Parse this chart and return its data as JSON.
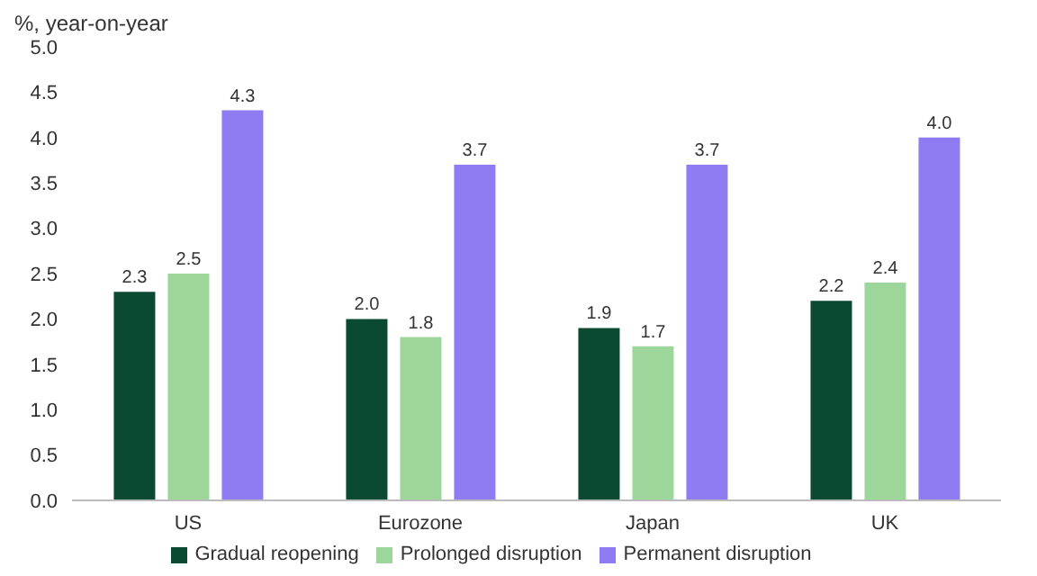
{
  "chart_data": {
    "type": "bar",
    "ylabel": "%, year-on-year",
    "categories": [
      "US",
      "Eurozone",
      "Japan",
      "UK"
    ],
    "series": [
      {
        "name": "Gradual reopening",
        "color": "#0b4a32",
        "values": [
          2.3,
          2.0,
          1.9,
          2.2
        ],
        "value_labels": [
          "2.3",
          "2.0",
          "1.9",
          "2.2"
        ]
      },
      {
        "name": "Prolonged disruption",
        "color": "#9dd69b",
        "values": [
          2.5,
          1.8,
          1.7,
          2.4
        ],
        "value_labels": [
          "2.5",
          "1.8",
          "1.7",
          "2.4"
        ]
      },
      {
        "name": "Permanent disruption",
        "color": "#8f7cf2",
        "values": [
          4.3,
          3.7,
          3.7,
          4.0
        ],
        "value_labels": [
          "4.3",
          "3.7",
          "3.7",
          "4.0"
        ]
      }
    ],
    "ylim": [
      0,
      5
    ],
    "yticks": [
      {
        "value": 0,
        "label": "0.0"
      },
      {
        "value": 0.5,
        "label": "0.5"
      },
      {
        "value": 1,
        "label": "1.0"
      },
      {
        "value": 1.5,
        "label": "1.5"
      },
      {
        "value": 2,
        "label": "2.0"
      },
      {
        "value": 2.5,
        "label": "2.5"
      },
      {
        "value": 3,
        "label": "3.0"
      },
      {
        "value": 3.5,
        "label": "3.5"
      },
      {
        "value": 4,
        "label": "4.0"
      },
      {
        "value": 4.5,
        "label": "4.5"
      },
      {
        "value": 5,
        "label": "5.0"
      }
    ],
    "grid": false,
    "legend": "bottom"
  }
}
